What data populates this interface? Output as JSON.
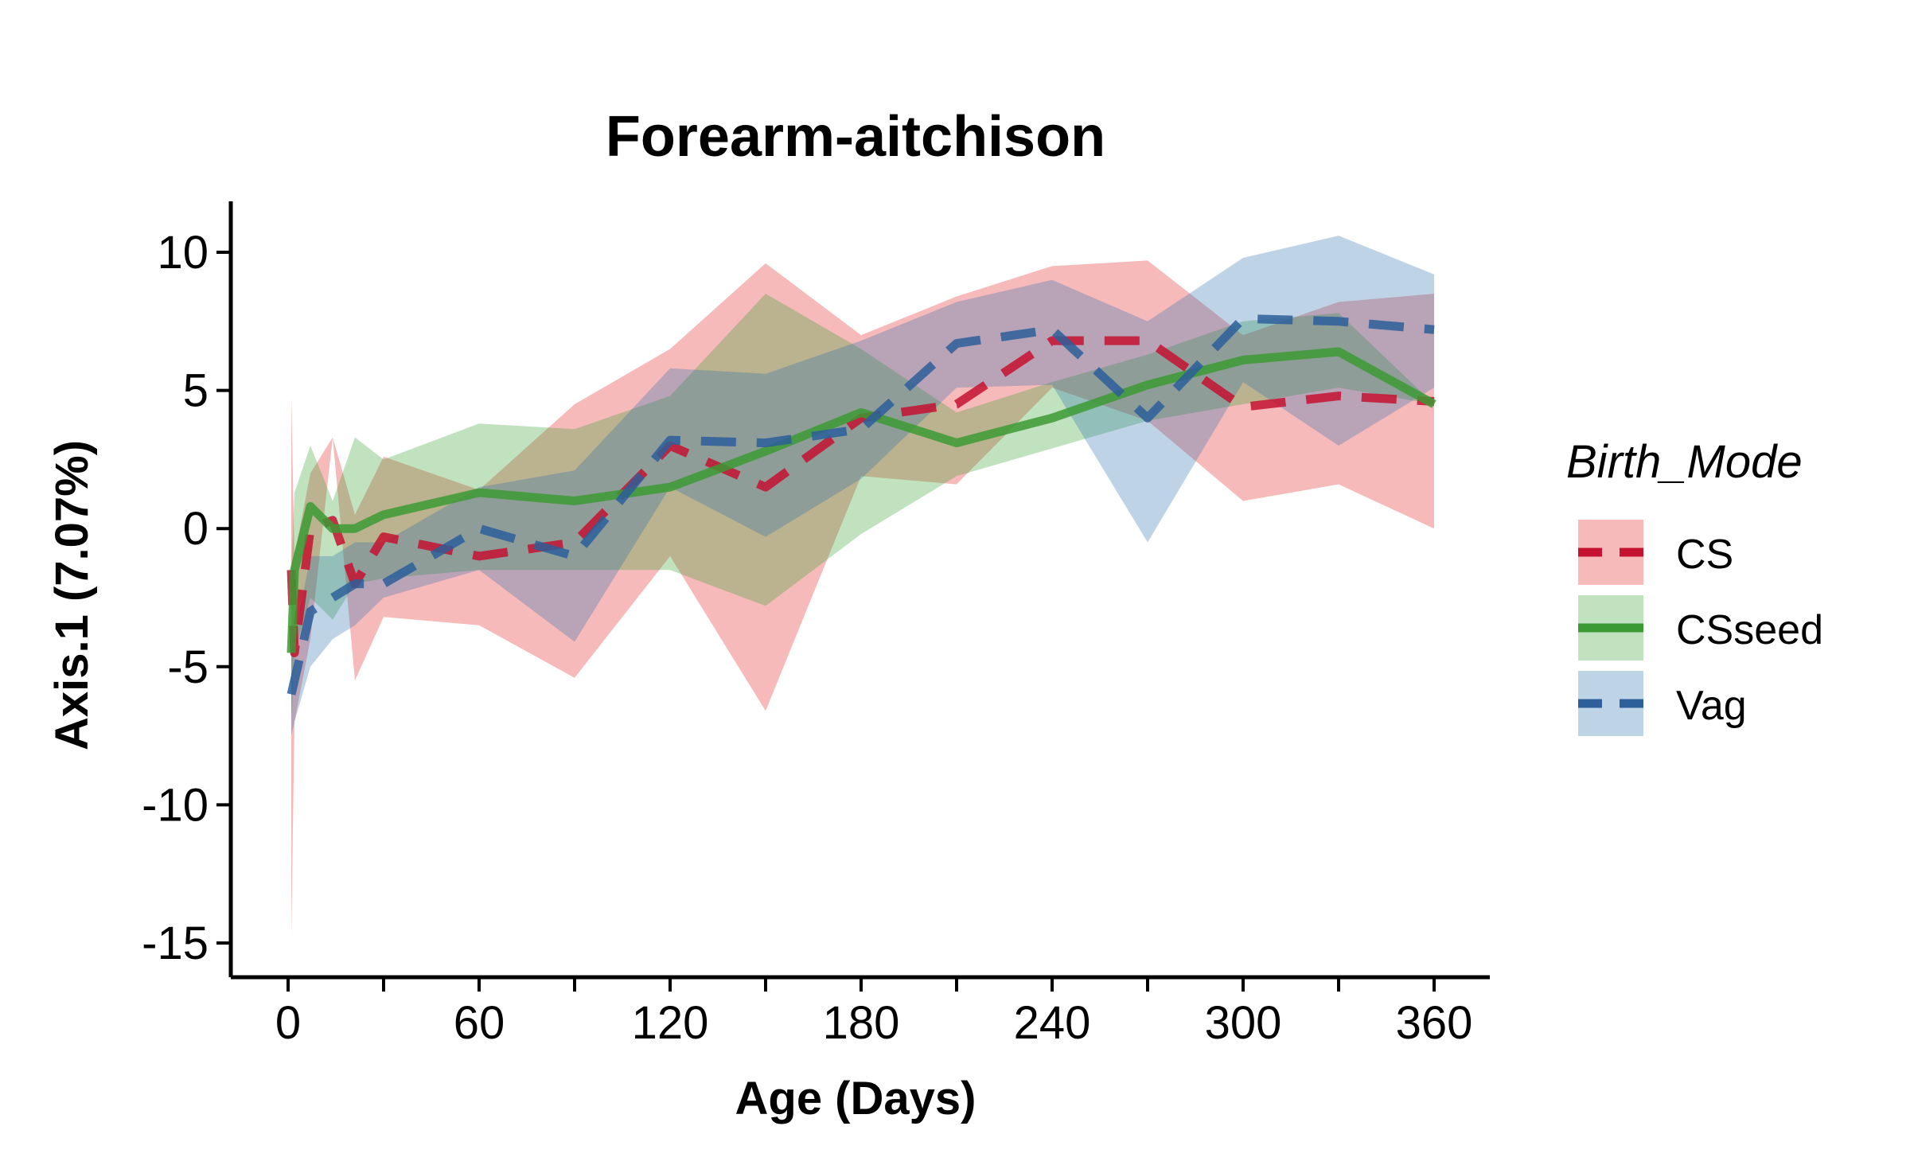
{
  "chart_data": {
    "type": "line",
    "title": "Forearm-aitchison",
    "xlabel": "Age (Days)",
    "ylabel": "Axis.1 (7.07%)",
    "xlim": [
      -30,
      630
    ],
    "ylim": [
      -16.3,
      12
    ],
    "x_major_ticks": [
      0,
      60,
      120,
      180,
      240,
      300,
      360
    ],
    "x_minor_ticks": [
      30,
      90,
      150,
      210,
      270,
      330
    ],
    "y_ticks": [
      10,
      5,
      0,
      -5,
      -10,
      -15
    ],
    "grid": false,
    "legend": {
      "title": "Birth_Mode",
      "placement": "right",
      "entries": [
        "CS",
        "CSseed",
        "Vag"
      ]
    },
    "series": [
      {
        "name": "CS",
        "color": "#e31a1c",
        "line_color": "#c41230",
        "dash": "dashed",
        "x": [
          1,
          2,
          7,
          14,
          21,
          30,
          60,
          90,
          120,
          150,
          180,
          210,
          240,
          270,
          300,
          330,
          360
        ],
        "y": [
          -1.5,
          -4.5,
          0.0,
          0.3,
          -2.0,
          -0.3,
          -1.0,
          -0.5,
          3.0,
          1.5,
          4.0,
          4.5,
          6.8,
          6.8,
          4.4,
          4.8,
          4.6
        ],
        "lower": [
          -14.8,
          -7.0,
          -4.0,
          3.3,
          -5.5,
          -3.2,
          -3.5,
          -5.4,
          -1.0,
          -6.6,
          1.9,
          1.6,
          5.1,
          3.9,
          1.0,
          1.6,
          0.0
        ],
        "upper": [
          4.8,
          -1.0,
          2.0,
          3.3,
          0.5,
          2.6,
          1.4,
          4.5,
          6.5,
          9.6,
          7.0,
          8.4,
          9.5,
          9.7,
          7.0,
          8.2,
          8.5
        ]
      },
      {
        "name": "CSseed",
        "color": "#33a02c",
        "line_color": "#3c9a34",
        "dash": "solid",
        "x": [
          1,
          2,
          7,
          14,
          21,
          30,
          60,
          90,
          120,
          150,
          180,
          210,
          240,
          270,
          300,
          330,
          360
        ],
        "y": [
          -4.5,
          -1.5,
          0.8,
          0.0,
          0.0,
          0.5,
          1.3,
          1.0,
          1.5,
          2.8,
          4.2,
          3.1,
          4.0,
          5.2,
          6.1,
          6.4,
          4.5
        ],
        "lower": [
          -7.0,
          -4.5,
          -2.5,
          -3.3,
          -2.0,
          -1.8,
          -1.5,
          -1.5,
          -1.5,
          -2.8,
          -0.2,
          1.9,
          2.9,
          3.9,
          4.5,
          5.1,
          4.5
        ],
        "upper": [
          -1.5,
          1.3,
          3.0,
          1.0,
          3.3,
          2.5,
          3.8,
          3.6,
          4.8,
          8.5,
          6.5,
          4.2,
          5.3,
          6.3,
          7.5,
          7.8,
          4.5
        ]
      },
      {
        "name": "Vag",
        "color": "#2b6cb0",
        "line_color": "#2d5f9a",
        "dash": "dashed",
        "x": [
          1,
          2,
          7,
          14,
          21,
          30,
          60,
          90,
          120,
          150,
          180,
          210,
          240,
          270,
          300,
          330,
          360
        ],
        "y": [
          -6.0,
          -5.5,
          -3.0,
          -2.5,
          -2.0,
          -2.0,
          0.0,
          -1.0,
          3.2,
          3.1,
          3.6,
          6.7,
          7.2,
          4.0,
          7.6,
          7.5,
          7.2
        ],
        "lower": [
          -7.5,
          -7.0,
          -5.0,
          -4.0,
          -3.5,
          -2.5,
          -1.5,
          -4.1,
          1.5,
          -0.3,
          1.8,
          5.1,
          5.2,
          -0.5,
          5.3,
          3.0,
          5.1
        ],
        "upper": [
          -4.5,
          -4.0,
          -1.0,
          -1.0,
          -0.5,
          -0.5,
          1.5,
          2.1,
          5.8,
          5.6,
          6.8,
          8.2,
          9.0,
          7.5,
          9.8,
          10.6,
          9.2
        ]
      }
    ]
  }
}
